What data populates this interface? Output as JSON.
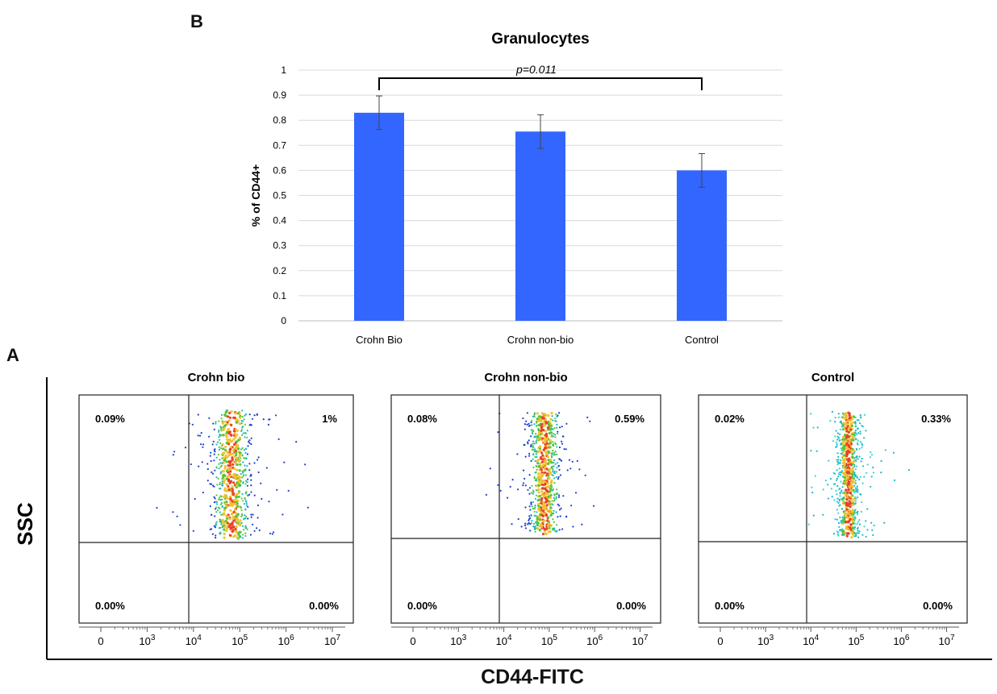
{
  "panel_b_label": "B",
  "panel_a_label": "A",
  "chart_data": [
    {
      "type": "bar",
      "title": "Granulocytes",
      "ylabel": "% of CD44+",
      "xlabel": "",
      "categories": [
        "Crohn Bio",
        "Crohn non-bio",
        "Control"
      ],
      "values": [
        0.83,
        0.755,
        0.6
      ],
      "error": [
        0.067,
        0.067,
        0.067
      ],
      "ylim": [
        0,
        1
      ],
      "yticks": [
        0,
        0.1,
        0.2,
        0.3,
        0.4,
        0.5,
        0.6,
        0.7,
        0.8,
        0.9,
        1
      ],
      "grid": true,
      "bar_color": "#3366ff",
      "annotation": {
        "text": "p=0.011",
        "from": "Crohn Bio",
        "to": "Control"
      }
    }
  ],
  "flow": {
    "ylabel": "SSC",
    "xlabel": "CD44-FITC",
    "x_ticks": [
      {
        "base": "0",
        "exp": ""
      },
      {
        "base": "10",
        "exp": "3"
      },
      {
        "base": "10",
        "exp": "4"
      },
      {
        "base": "10",
        "exp": "5"
      },
      {
        "base": "10",
        "exp": "6"
      },
      {
        "base": "10",
        "exp": "7"
      }
    ],
    "plots": [
      {
        "title": "Crohn bio",
        "q_ul": "0.09%",
        "q_ur": "1%",
        "q_ll": "0.00%",
        "q_lr": "0.00%"
      },
      {
        "title": "Crohn non-bio",
        "q_ul": "0.08%",
        "q_ur": "0.59%",
        "q_ll": "0.00%",
        "q_lr": "0.00%"
      },
      {
        "title": "Control",
        "q_ul": "0.02%",
        "q_ur": "0.33%",
        "q_ll": "0.00%",
        "q_lr": "0.00%"
      }
    ]
  }
}
